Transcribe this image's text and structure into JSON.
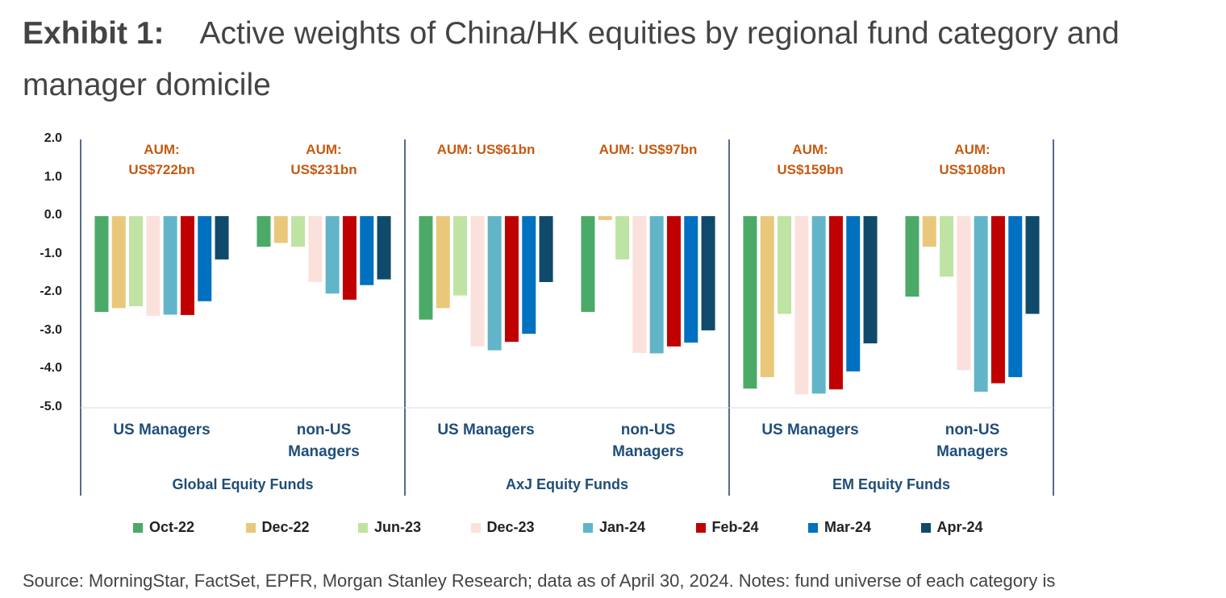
{
  "chart_data": {
    "type": "bar",
    "exhibit_label": "Exhibit 1:",
    "title": "Active weights of China/HK equities by regional fund category and manager domicile",
    "categories": [
      "US Managers",
      "non-US Managers",
      "US Managers",
      "non-US Managers",
      "US Managers",
      "non-US Managers"
    ],
    "groups": [
      "Global Equity Funds",
      "AxJ Equity Funds",
      "EM Equity Funds"
    ],
    "annotations": [
      "AUM: US$722bn",
      "AUM: US$231bn",
      "AUM: US$61bn",
      "AUM: US$97bn",
      "AUM: US$159bn",
      "AUM: US$108bn"
    ],
    "series": [
      {
        "name": "Oct-22",
        "color": "#4caa68",
        "values": [
          -2.5,
          -0.8,
          -2.7,
          -2.5,
          -4.5,
          -2.1
        ]
      },
      {
        "name": "Dec-22",
        "color": "#e9c87b",
        "values": [
          -2.4,
          -0.7,
          -2.4,
          -0.1,
          -4.2,
          -0.8
        ]
      },
      {
        "name": "Jun-23",
        "color": "#bfe3a3",
        "values": [
          -2.35,
          -0.8,
          -2.07,
          -1.13,
          -2.55,
          -1.58
        ]
      },
      {
        "name": "Dec-23",
        "color": "#fbe1dc",
        "values": [
          -2.6,
          -1.72,
          -3.4,
          -3.57,
          -4.65,
          -4.02
        ]
      },
      {
        "name": "Jan-24",
        "color": "#62b5c8",
        "values": [
          -2.57,
          -2.02,
          -3.5,
          -3.58,
          -4.63,
          -4.58
        ]
      },
      {
        "name": "Feb-24",
        "color": "#c00000",
        "values": [
          -2.58,
          -2.18,
          -3.28,
          -3.4,
          -4.52,
          -4.36
        ]
      },
      {
        "name": "Mar-24",
        "color": "#0070c0",
        "values": [
          -2.22,
          -1.8,
          -3.07,
          -3.3,
          -4.05,
          -4.2
        ]
      },
      {
        "name": "Apr-24",
        "color": "#0f4a6a",
        "values": [
          -1.13,
          -1.65,
          -1.72,
          -2.98,
          -3.32,
          -2.55
        ]
      }
    ],
    "ylim": [
      -5,
      2
    ],
    "yticks": [
      {
        "value": 2,
        "label": "2.0"
      },
      {
        "value": 1,
        "label": "1.0"
      },
      {
        "value": 0,
        "label": "0.0"
      },
      {
        "value": -1,
        "label": "-1.0"
      },
      {
        "value": -2,
        "label": "-2.0"
      },
      {
        "value": -3,
        "label": "-3.0"
      },
      {
        "value": -4,
        "label": "-4.0"
      },
      {
        "value": -5,
        "label": "-5.0"
      }
    ],
    "grid": false,
    "legend": "bottom",
    "source": "Source: MorningStar, FactSet, EPFR, Morgan Stanley Research; data as of April 30, 2024. Notes: fund universe of each category is"
  }
}
